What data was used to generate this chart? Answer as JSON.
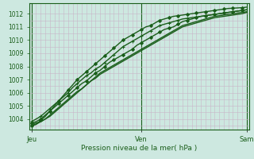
{
  "bg_color": "#cde8e0",
  "grid_color": "#c8b4c8",
  "line_color": "#1a5e1a",
  "title": "Pression niveau de la mer( hPa )",
  "xtick_labels": [
    "Jeu",
    "Ven",
    "Sam"
  ],
  "ylim": [
    1003.2,
    1012.8
  ],
  "yticks": [
    1004,
    1005,
    1006,
    1007,
    1008,
    1009,
    1010,
    1011,
    1012
  ],
  "n_hours": 48,
  "series": [
    {
      "y_vals": [
        1003.6,
        1003.7,
        1003.8,
        1004.0,
        1004.2,
        1004.5,
        1004.8,
        1005.1,
        1005.4,
        1005.7,
        1006.0,
        1006.3,
        1006.6,
        1006.9,
        1007.2,
        1007.5,
        1007.7,
        1007.9,
        1008.1,
        1008.3,
        1008.5,
        1008.7,
        1008.9,
        1009.1,
        1009.3,
        1009.5,
        1009.7,
        1009.9,
        1010.1,
        1010.3,
        1010.5,
        1010.7,
        1010.9,
        1011.1,
        1011.2,
        1011.3,
        1011.4,
        1011.5,
        1011.6,
        1011.7,
        1011.8,
        1011.85,
        1011.9,
        1011.95,
        1012.0,
        1012.05,
        1012.1,
        1012.15
      ],
      "marker": null,
      "lw": 1.0
    },
    {
      "y_vals": [
        1003.5,
        1003.6,
        1003.8,
        1004.0,
        1004.3,
        1004.6,
        1004.9,
        1005.2,
        1005.5,
        1005.8,
        1006.1,
        1006.3,
        1006.6,
        1006.9,
        1007.1,
        1007.4,
        1007.6,
        1007.8,
        1008.0,
        1008.2,
        1008.4,
        1008.6,
        1008.8,
        1009.0,
        1009.2,
        1009.4,
        1009.6,
        1009.8,
        1010.0,
        1010.2,
        1010.4,
        1010.6,
        1010.8,
        1011.0,
        1011.1,
        1011.2,
        1011.3,
        1011.4,
        1011.5,
        1011.6,
        1011.7,
        1011.75,
        1011.8,
        1011.85,
        1011.9,
        1011.95,
        1012.0,
        1012.1
      ],
      "marker": null,
      "lw": 1.0
    },
    {
      "y_vals": [
        1003.7,
        1003.8,
        1004.0,
        1004.3,
        1004.6,
        1004.9,
        1005.2,
        1005.5,
        1005.8,
        1006.1,
        1006.4,
        1006.7,
        1006.9,
        1007.2,
        1007.5,
        1007.7,
        1008.0,
        1008.3,
        1008.5,
        1008.7,
        1008.9,
        1009.1,
        1009.3,
        1009.6,
        1009.8,
        1010.0,
        1010.2,
        1010.4,
        1010.6,
        1010.8,
        1010.9,
        1011.0,
        1011.2,
        1011.4,
        1011.5,
        1011.6,
        1011.7,
        1011.8,
        1011.85,
        1011.9,
        1011.95,
        1012.0,
        1012.05,
        1012.1,
        1012.15,
        1012.2,
        1012.25,
        1012.3
      ],
      "marker": "D",
      "lw": 1.0,
      "ms": 2.0,
      "markevery": 2
    },
    {
      "y_vals": [
        1003.8,
        1004.0,
        1004.2,
        1004.5,
        1004.8,
        1005.1,
        1005.4,
        1005.7,
        1006.0,
        1006.4,
        1006.7,
        1007.0,
        1007.3,
        1007.5,
        1007.8,
        1008.0,
        1008.3,
        1008.6,
        1008.9,
        1009.2,
        1009.5,
        1009.7,
        1009.9,
        1010.1,
        1010.3,
        1010.5,
        1010.7,
        1010.9,
        1011.1,
        1011.2,
        1011.3,
        1011.4,
        1011.5,
        1011.6,
        1011.65,
        1011.7,
        1011.75,
        1011.8,
        1011.85,
        1011.9,
        1011.95,
        1012.0,
        1012.05,
        1012.1,
        1012.15,
        1012.2,
        1012.25,
        1012.3
      ],
      "marker": "+",
      "lw": 1.0,
      "ms": 3.5,
      "markevery": 2
    },
    {
      "y_vals": [
        1003.5,
        1003.6,
        1003.9,
        1004.2,
        1004.6,
        1005.0,
        1005.4,
        1005.8,
        1006.2,
        1006.6,
        1007.0,
        1007.3,
        1007.6,
        1007.9,
        1008.2,
        1008.5,
        1008.8,
        1009.1,
        1009.4,
        1009.7,
        1010.0,
        1010.2,
        1010.4,
        1010.6,
        1010.8,
        1011.0,
        1011.1,
        1011.3,
        1011.5,
        1011.6,
        1011.7,
        1011.8,
        1011.85,
        1011.9,
        1011.95,
        1012.0,
        1012.05,
        1012.1,
        1012.15,
        1012.2,
        1012.25,
        1012.3,
        1012.35,
        1012.4,
        1012.42,
        1012.44,
        1012.46,
        1012.5
      ],
      "marker": "D",
      "lw": 1.0,
      "ms": 2.0,
      "markevery": 2
    }
  ]
}
